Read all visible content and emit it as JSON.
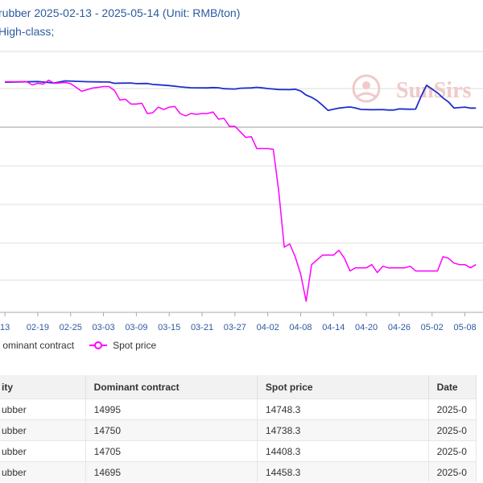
{
  "header": {
    "title": "rubber 2025-02-13 - 2025-05-14 (Unit: RMB/ton)",
    "subtitle": "High-class;"
  },
  "watermark": {
    "brand": "SunSirs",
    "color": "#f1c9c9"
  },
  "legend": {
    "dominant_label": "ominant contract",
    "spot_label": "Spot price"
  },
  "colors": {
    "dominant": "#1f2fcc",
    "spot": "#ff00ff",
    "grid": "#dddddd",
    "axis": "#aaaaaa"
  },
  "chart_data": {
    "type": "line",
    "x_tick_labels": [
      "13",
      "02-19",
      "02-25",
      "03-03",
      "03-09",
      "03-15",
      "03-21",
      "03-27",
      "04-02",
      "04-08",
      "04-14",
      "04-20",
      "04-26",
      "05-02",
      "05-08"
    ],
    "grid": true,
    "series": [
      {
        "name": "Dominant contract",
        "color": "#1f2fcc",
        "points": [
          [
            0,
            17470
          ],
          [
            6,
            17510
          ],
          [
            9,
            17420
          ],
          [
            11,
            17550
          ],
          [
            15,
            17500
          ],
          [
            19,
            17480
          ],
          [
            20,
            17400
          ],
          [
            21,
            17410
          ],
          [
            23,
            17420
          ],
          [
            24,
            17380
          ],
          [
            26,
            17390
          ],
          [
            27,
            17330
          ],
          [
            28,
            17310
          ],
          [
            30,
            17260
          ],
          [
            32,
            17180
          ],
          [
            33,
            17150
          ],
          [
            34,
            17120
          ],
          [
            37,
            17110
          ],
          [
            38,
            17130
          ],
          [
            39,
            17120
          ],
          [
            40,
            17060
          ],
          [
            42,
            17040
          ],
          [
            43,
            17090
          ],
          [
            45,
            17110
          ],
          [
            46,
            17150
          ],
          [
            47,
            17110
          ],
          [
            48,
            17070
          ],
          [
            50,
            17010
          ],
          [
            52,
            17000
          ],
          [
            53,
            17030
          ],
          [
            54,
            16920
          ],
          [
            55,
            16660
          ],
          [
            56,
            16520
          ],
          [
            57,
            16310
          ],
          [
            58,
            16020
          ],
          [
            59,
            15700
          ],
          [
            61,
            15840
          ],
          [
            62,
            15880
          ],
          [
            63,
            15910
          ],
          [
            64,
            15850
          ],
          [
            65,
            15760
          ],
          [
            67,
            15740
          ],
          [
            69,
            15750
          ],
          [
            70,
            15720
          ],
          [
            71,
            15720
          ],
          [
            72,
            15790
          ],
          [
            74,
            15770
          ],
          [
            75,
            15780
          ],
          [
            76,
            16580
          ],
          [
            77,
            17280
          ],
          [
            79,
            16800
          ],
          [
            80,
            16480
          ],
          [
            81,
            16230
          ],
          [
            82,
            15850
          ],
          [
            84,
            15900
          ],
          [
            85,
            15840
          ],
          [
            86,
            15840
          ]
        ]
      },
      {
        "name": "Spot price",
        "color": "#ff00ff",
        "points": [
          [
            0,
            17500
          ],
          [
            4,
            17500
          ],
          [
            5,
            17300
          ],
          [
            6,
            17400
          ],
          [
            7,
            17350
          ],
          [
            8,
            17600
          ],
          [
            9,
            17400
          ],
          [
            11,
            17450
          ],
          [
            12,
            17380
          ],
          [
            13,
            17150
          ],
          [
            14,
            16900
          ],
          [
            15,
            17000
          ],
          [
            16,
            17100
          ],
          [
            17,
            17150
          ],
          [
            18,
            17200
          ],
          [
            19,
            17200
          ],
          [
            20,
            16950
          ],
          [
            21,
            16350
          ],
          [
            22,
            16400
          ],
          [
            23,
            16100
          ],
          [
            24,
            16100
          ],
          [
            25,
            16150
          ],
          [
            26,
            15500
          ],
          [
            27,
            15550
          ],
          [
            28,
            15900
          ],
          [
            29,
            15750
          ],
          [
            30,
            15900
          ],
          [
            31,
            15950
          ],
          [
            32,
            15500
          ],
          [
            33,
            15350
          ],
          [
            34,
            15500
          ],
          [
            35,
            15450
          ],
          [
            36,
            15500
          ],
          [
            37,
            15500
          ],
          [
            38,
            15600
          ],
          [
            39,
            15150
          ],
          [
            40,
            15200
          ],
          [
            41,
            14700
          ],
          [
            42,
            14700
          ],
          [
            43,
            14350
          ],
          [
            44,
            14000
          ],
          [
            45,
            14050
          ],
          [
            46,
            13300
          ],
          [
            47,
            13300
          ],
          [
            48,
            13300
          ],
          [
            49,
            13250
          ],
          [
            50,
            10600
          ],
          [
            51,
            7100
          ],
          [
            52,
            7300
          ],
          [
            53,
            6500
          ],
          [
            54,
            5400
          ],
          [
            55,
            3700
          ],
          [
            56,
            6000
          ],
          [
            57,
            6300
          ],
          [
            58,
            6600
          ],
          [
            59,
            6600
          ],
          [
            60,
            6600
          ],
          [
            61,
            6900
          ],
          [
            62,
            6400
          ],
          [
            63,
            5600
          ],
          [
            64,
            5800
          ],
          [
            65,
            5800
          ],
          [
            66,
            5800
          ],
          [
            67,
            6000
          ],
          [
            68,
            5500
          ],
          [
            69,
            5900
          ],
          [
            70,
            5800
          ],
          [
            71,
            5800
          ],
          [
            72,
            5800
          ],
          [
            73,
            5800
          ],
          [
            74,
            5900
          ],
          [
            75,
            5600
          ],
          [
            76,
            5600
          ],
          [
            77,
            5600
          ],
          [
            78,
            5600
          ],
          [
            79,
            5600
          ],
          [
            80,
            6500
          ],
          [
            81,
            6400
          ],
          [
            82,
            6100
          ],
          [
            83,
            6000
          ],
          [
            84,
            6000
          ],
          [
            85,
            5800
          ],
          [
            86,
            6000
          ]
        ]
      }
    ]
  },
  "table": {
    "headers": [
      "ity",
      "Dominant contract",
      "Spot price",
      "Date"
    ],
    "rows": [
      [
        "ubber",
        "14995",
        "14748.3",
        "2025-0"
      ],
      [
        "ubber",
        "14750",
        "14738.3",
        "2025-0"
      ],
      [
        "ubber",
        "14705",
        "14408.3",
        "2025-0"
      ],
      [
        "ubber",
        "14695",
        "14458.3",
        "2025-0"
      ]
    ]
  }
}
